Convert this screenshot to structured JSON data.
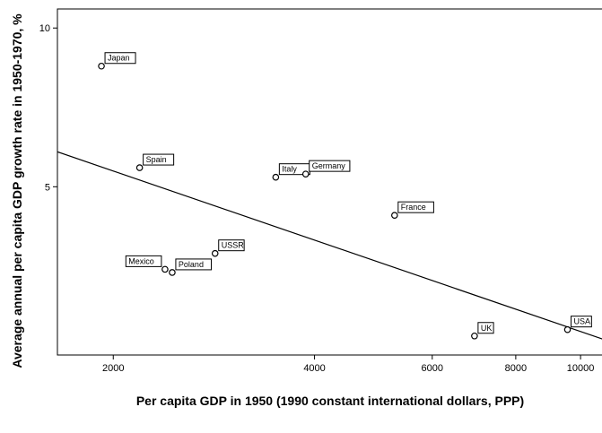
{
  "chart_data": {
    "type": "scatter",
    "xlabel": "Per capita GDP in 1950 (1990 constant international dollars, PPP)",
    "ylabel": "Average annual per capita GDP growth rate in 1950-1970, %",
    "x_scale": "log",
    "xlim": [
      1650,
      10800
    ],
    "ylim": [
      -0.3,
      10.6
    ],
    "x_ticks": [
      {
        "value": 2000,
        "label": "2000"
      },
      {
        "value": 4000,
        "label": "4000"
      },
      {
        "value": 6000,
        "label": "6000"
      },
      {
        "value": 8000,
        "label": "8000"
      },
      {
        "value": 10000,
        "label": "10000"
      }
    ],
    "y_ticks": [
      {
        "value": 5,
        "label": "5"
      },
      {
        "value": 10,
        "label": "10"
      }
    ],
    "grid": false,
    "points": [
      {
        "label": "Japan",
        "x": 1920,
        "y": 8.8
      },
      {
        "label": "Spain",
        "x": 2190,
        "y": 5.6
      },
      {
        "label": "Italy",
        "x": 3500,
        "y": 5.3
      },
      {
        "label": "Germany",
        "x": 3880,
        "y": 5.4
      },
      {
        "label": "France",
        "x": 5270,
        "y": 4.1
      },
      {
        "label": "USSR",
        "x": 2840,
        "y": 2.9
      },
      {
        "label": "Mexico",
        "x": 2390,
        "y": 2.4
      },
      {
        "label": "Poland",
        "x": 2450,
        "y": 2.3
      },
      {
        "label": "UK",
        "x": 6940,
        "y": 0.3
      },
      {
        "label": "USA",
        "x": 9560,
        "y": 0.5
      }
    ],
    "fit_line": {
      "x": [
        1650,
        10800
      ],
      "y": [
        6.1,
        0.2
      ]
    }
  }
}
